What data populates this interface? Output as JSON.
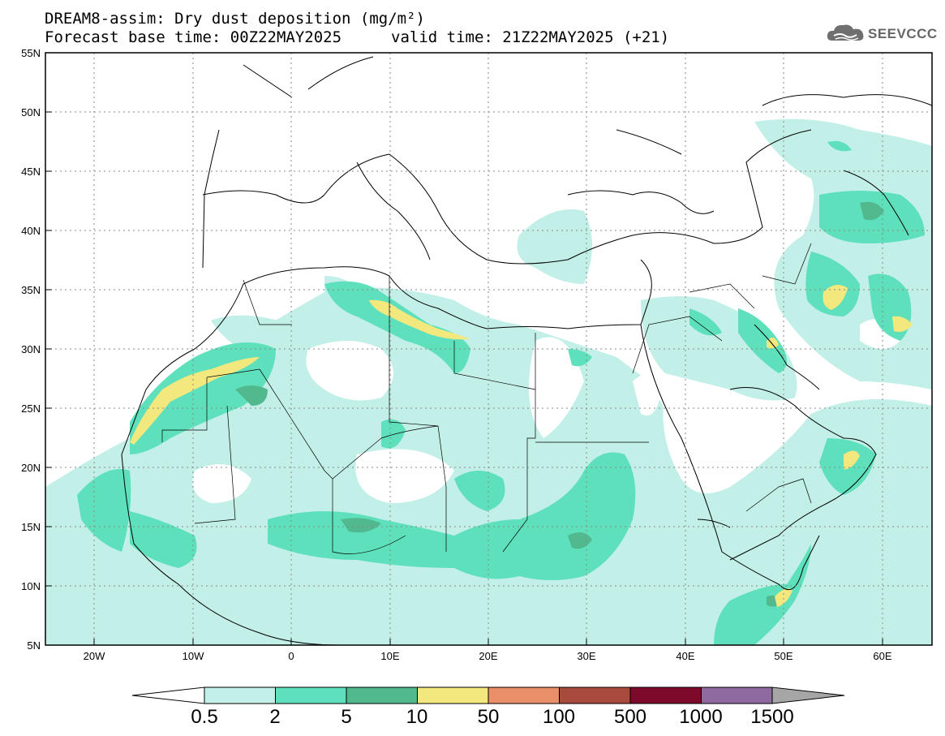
{
  "header": {
    "title_line1": "DREAM8-assim: Dry dust deposition (mg/m²)",
    "title_line2": "Forecast base time: 00Z22MAY2025",
    "valid_time": "valid time: 21Z22MAY2025 (+21)"
  },
  "logo": {
    "text": "SEEVCCC",
    "icon": "cloud-logo-icon"
  },
  "axes": {
    "lat_labels": [
      "55N",
      "50N",
      "45N",
      "40N",
      "35N",
      "30N",
      "25N",
      "20N",
      "15N",
      "10N",
      "5N"
    ],
    "lon_labels": [
      "20W",
      "10W",
      "0",
      "10E",
      "20E",
      "30E",
      "40E",
      "50E",
      "60E"
    ]
  },
  "colorbar": {
    "labels": [
      "0.5",
      "2",
      "5",
      "10",
      "50",
      "100",
      "500",
      "1000",
      "1500"
    ],
    "colors": [
      "#c2efe8",
      "#5ee0bd",
      "#52b98f",
      "#f3e87e",
      "#e98f6a",
      "#a84a3e",
      "#7d0a2b",
      "#8e6aa0",
      "#a6a6a6"
    ]
  }
}
